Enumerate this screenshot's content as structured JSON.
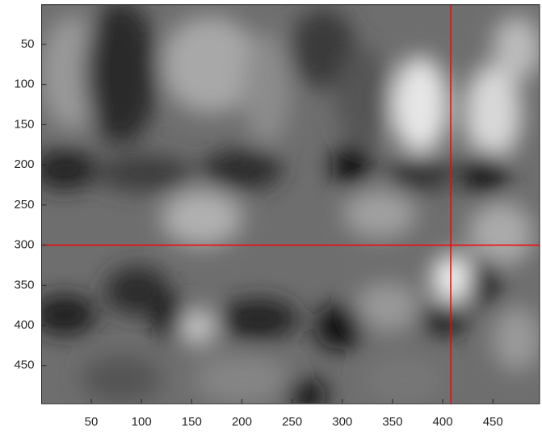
{
  "chart_data": {
    "type": "image",
    "colormap": "gray",
    "xlim": [
      0.5,
      496.5
    ],
    "ylim": [
      0.5,
      497.5
    ],
    "y_reversed": true,
    "xticks": [
      50,
      100,
      150,
      200,
      250,
      300,
      350,
      400,
      450
    ],
    "yticks": [
      50,
      100,
      150,
      200,
      250,
      300,
      350,
      400,
      450
    ],
    "crosshair": {
      "x": 408,
      "y": 300,
      "color": "#ff0000"
    }
  }
}
